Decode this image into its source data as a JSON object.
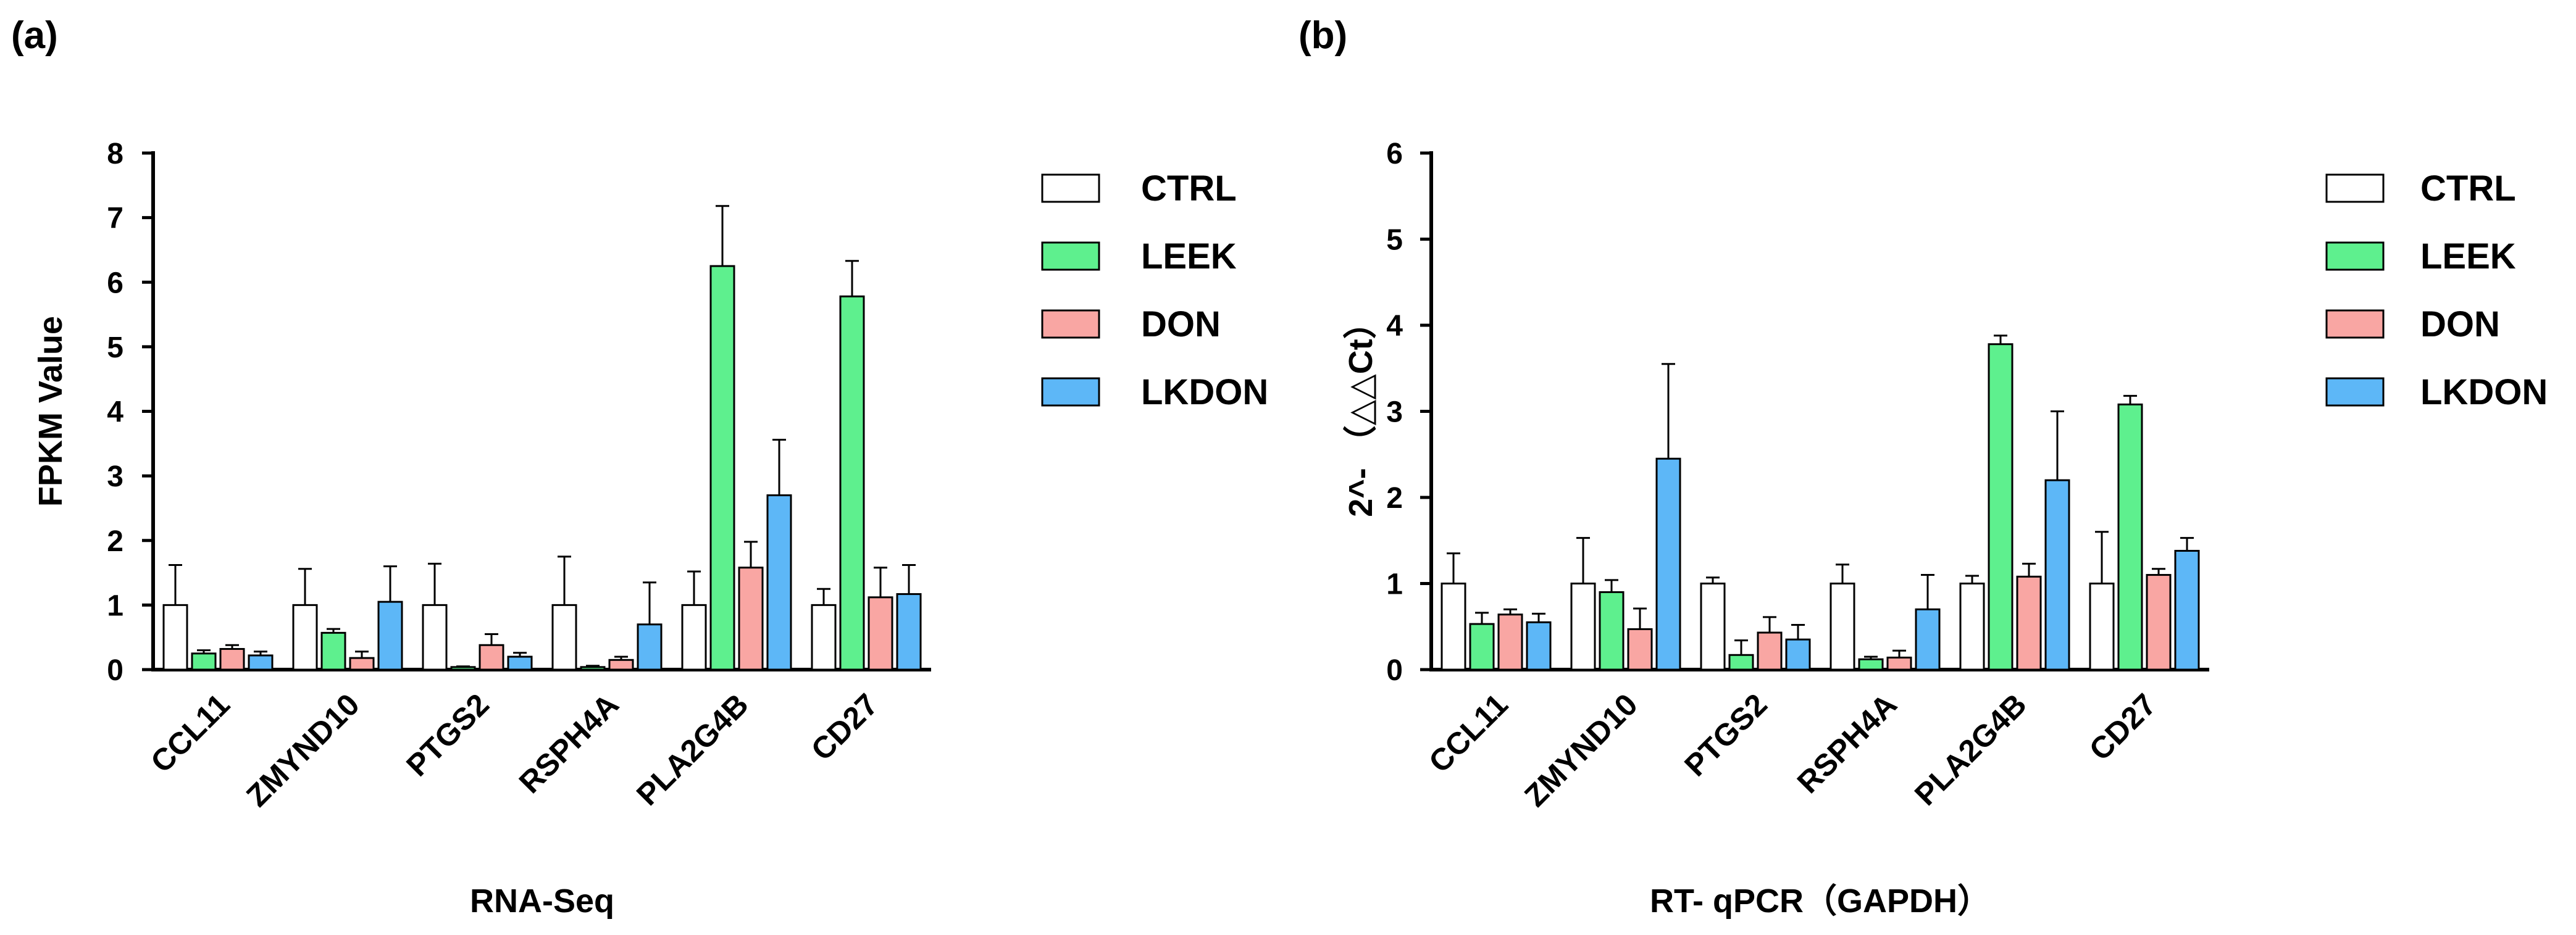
{
  "figure": {
    "panel_a_label": "(a)",
    "panel_b_label": "(b)"
  },
  "chart_data": [
    {
      "type": "bar",
      "panel": "(a)",
      "title": "",
      "xlabel": "RNA-Seq",
      "ylabel": "FPKM Value",
      "ylim": [
        0,
        8
      ],
      "yticks": [
        0,
        1,
        2,
        3,
        4,
        5,
        6,
        7,
        8
      ],
      "grid": false,
      "legend_position": "right",
      "categories": [
        "CCL11",
        "ZMYND10",
        "PTGS2",
        "RSPH4A",
        "PLA2G4B",
        "CD27"
      ],
      "series": [
        {
          "name": "CTRL",
          "color": "#ffffff",
          "values": [
            1.0,
            1.0,
            1.0,
            1.0,
            1.0,
            1.0
          ],
          "errors": [
            0.62,
            0.56,
            0.64,
            0.75,
            0.52,
            0.25
          ]
        },
        {
          "name": "LEEK",
          "color": "#5ef08e",
          "values": [
            0.25,
            0.57,
            0.04,
            0.04,
            6.25,
            5.78
          ],
          "errors": [
            0.05,
            0.06,
            0.01,
            0.02,
            0.93,
            0.55
          ]
        },
        {
          "name": "DON",
          "color": "#f9a6a3",
          "values": [
            0.32,
            0.18,
            0.38,
            0.15,
            1.58,
            1.12
          ],
          "errors": [
            0.06,
            0.1,
            0.17,
            0.05,
            0.4,
            0.46
          ]
        },
        {
          "name": "LKDON",
          "color": "#5db7f7",
          "values": [
            0.22,
            1.05,
            0.2,
            0.7,
            2.7,
            1.17
          ],
          "errors": [
            0.06,
            0.55,
            0.06,
            0.65,
            0.86,
            0.45
          ]
        }
      ]
    },
    {
      "type": "bar",
      "panel": "(b)",
      "title": "",
      "xlabel": "RT- qPCR（GAPDH）",
      "ylabel": "2^- （△△Ct）",
      "ylim": [
        0,
        6
      ],
      "yticks": [
        0,
        1,
        2,
        3,
        4,
        5,
        6
      ],
      "grid": false,
      "legend_position": "right",
      "categories": [
        "CCL11",
        "ZMYND10",
        "PTGS2",
        "RSPH4A",
        "PLA2G4B",
        "CD27"
      ],
      "series": [
        {
          "name": "CTRL",
          "color": "#ffffff",
          "values": [
            1.0,
            1.0,
            1.0,
            1.0,
            1.0,
            1.0
          ],
          "errors": [
            0.35,
            0.53,
            0.07,
            0.22,
            0.09,
            0.6
          ]
        },
        {
          "name": "LEEK",
          "color": "#5ef08e",
          "values": [
            0.53,
            0.9,
            0.17,
            0.12,
            3.78,
            3.08
          ],
          "errors": [
            0.13,
            0.14,
            0.17,
            0.03,
            0.1,
            0.1
          ]
        },
        {
          "name": "DON",
          "color": "#f9a6a3",
          "values": [
            0.64,
            0.47,
            0.43,
            0.14,
            1.08,
            1.1
          ],
          "errors": [
            0.06,
            0.24,
            0.18,
            0.08,
            0.15,
            0.07
          ]
        },
        {
          "name": "LKDON",
          "color": "#5db7f7",
          "values": [
            0.55,
            2.45,
            0.35,
            0.7,
            2.2,
            1.38
          ],
          "errors": [
            0.1,
            1.1,
            0.17,
            0.4,
            0.8,
            0.15
          ]
        }
      ]
    }
  ]
}
